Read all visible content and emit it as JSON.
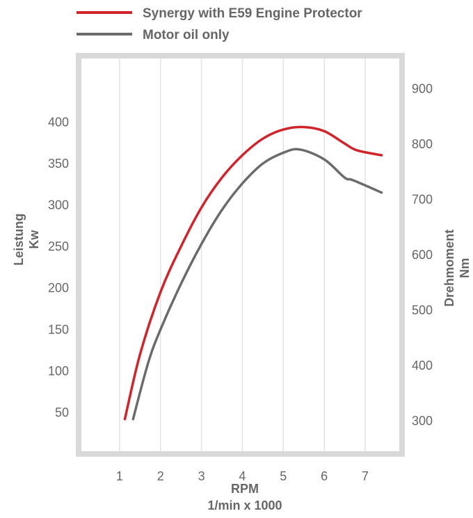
{
  "chart_data": {
    "type": "line",
    "title": "",
    "legend": {
      "placement": "top-left",
      "entries": [
        {
          "label": "Synergy with E59 Engine Protector",
          "color": "#d2232a"
        },
        {
          "label": "Motor oil only",
          "color": "#6b6b6b"
        }
      ]
    },
    "x_axis": {
      "label": "RPM",
      "sublabel": "1/min x 1000",
      "range": [
        0,
        7.9
      ],
      "ticks": [
        1,
        2,
        3,
        4,
        5,
        6,
        7
      ]
    },
    "y_axis_left": {
      "label_line1": "Leistung",
      "label_line2": "Kw",
      "range": [
        0,
        480
      ],
      "ticks": [
        50,
        100,
        150,
        200,
        250,
        300,
        350,
        400
      ]
    },
    "y_axis_right": {
      "label_line1": "Drehmoment",
      "label_line2": "Nm",
      "range": [
        240,
        960
      ],
      "ticks": [
        300,
        400,
        500,
        600,
        700,
        800,
        900
      ]
    },
    "grid": "vertical",
    "series": [
      {
        "name": "Synergy with E59 Engine Protector",
        "color": "#d2232a",
        "points": [
          [
            1.13,
            42
          ],
          [
            1.5,
            120
          ],
          [
            2,
            195
          ],
          [
            2.5,
            250
          ],
          [
            3,
            297
          ],
          [
            3.5,
            333
          ],
          [
            4,
            360
          ],
          [
            4.5,
            380
          ],
          [
            5,
            391
          ],
          [
            5.5,
            394
          ],
          [
            6,
            389
          ],
          [
            6.5,
            374
          ],
          [
            6.8,
            366
          ],
          [
            7.4,
            360
          ]
        ]
      },
      {
        "name": "Motor oil only",
        "color": "#6b6b6b",
        "points": [
          [
            1.33,
            42
          ],
          [
            1.7,
            110
          ],
          [
            2,
            150
          ],
          [
            2.5,
            205
          ],
          [
            3,
            253
          ],
          [
            3.5,
            294
          ],
          [
            4,
            326
          ],
          [
            4.5,
            350
          ],
          [
            5,
            363
          ],
          [
            5.4,
            367
          ],
          [
            6,
            355
          ],
          [
            6.5,
            333
          ],
          [
            6.7,
            330
          ],
          [
            7.4,
            315
          ]
        ]
      }
    ]
  }
}
